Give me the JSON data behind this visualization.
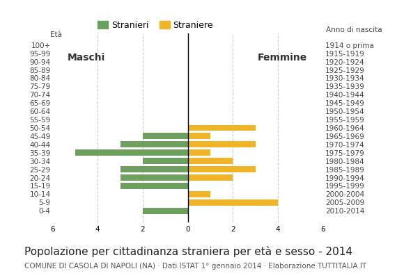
{
  "age_groups": [
    "100+",
    "95-99",
    "90-94",
    "85-89",
    "80-84",
    "75-79",
    "70-74",
    "65-69",
    "60-64",
    "55-59",
    "50-54",
    "45-49",
    "40-44",
    "35-39",
    "30-34",
    "25-29",
    "20-24",
    "15-19",
    "10-14",
    "5-9",
    "0-4"
  ],
  "birth_years": [
    "1914 o prima",
    "1915-1919",
    "1920-1924",
    "1925-1929",
    "1930-1934",
    "1935-1939",
    "1940-1944",
    "1945-1949",
    "1950-1954",
    "1955-1959",
    "1960-1964",
    "1965-1969",
    "1970-1974",
    "1975-1979",
    "1980-1984",
    "1985-1989",
    "1990-1994",
    "1995-1999",
    "2000-2004",
    "2005-2009",
    "2010-2014"
  ],
  "males": [
    0,
    0,
    0,
    0,
    0,
    0,
    0,
    0,
    0,
    0,
    0,
    2,
    3,
    5,
    2,
    3,
    3,
    3,
    0,
    0,
    2
  ],
  "females": [
    0,
    0,
    0,
    0,
    0,
    0,
    0,
    0,
    0,
    0,
    3,
    1,
    3,
    1,
    2,
    3,
    2,
    0,
    1,
    4,
    0
  ],
  "male_color": "#6d9f5e",
  "female_color": "#f0b429",
  "background_color": "#ffffff",
  "grid_color": "#cccccc",
  "title": "Popolazione per cittadinanza straniera per età e sesso - 2014",
  "subtitle": "COMUNE DI CASOLA DI NAPOLI (NA) · Dati ISTAT 1° gennaio 2014 · Elaborazione TUTTITALIA.IT",
  "legend_males": "Stranieri",
  "legend_females": "Straniere",
  "label_eta": "Età",
  "label_anno": "Anno di nascita",
  "label_maschi": "Maschi",
  "label_femmine": "Femmine",
  "xlim": 6,
  "title_fontsize": 11,
  "subtitle_fontsize": 7.5,
  "tick_fontsize": 7.5
}
